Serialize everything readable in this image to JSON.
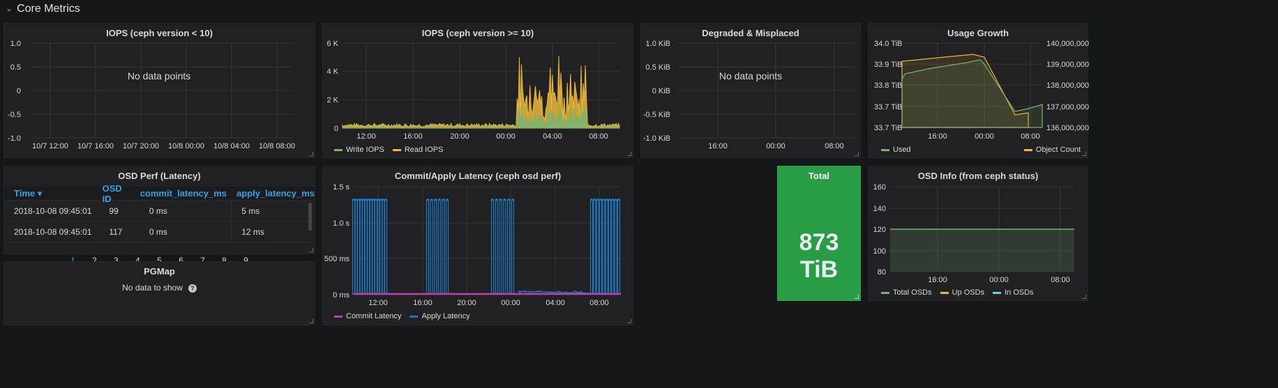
{
  "row": {
    "title": "Core Metrics"
  },
  "panels": {
    "iops_old": {
      "title": "IOPS (ceph version < 10)",
      "nodata": "No data points",
      "yticks": [
        "1.0",
        "0.5",
        "0",
        "-0.5",
        "-1.0"
      ],
      "xticks": [
        "10/7 12:00",
        "10/7 16:00",
        "10/7 20:00",
        "10/8 00:00",
        "10/8 04:00",
        "10/8 08:00"
      ]
    },
    "iops_new": {
      "title": "IOPS (ceph version >= 10)",
      "yticks": [
        "6 K",
        "4 K",
        "2 K",
        "0"
      ],
      "xticks": [
        "12:00",
        "16:00",
        "20:00",
        "00:00",
        "04:00",
        "08:00"
      ],
      "legend": [
        "Write IOPS",
        "Read IOPS"
      ]
    },
    "degraded": {
      "title": "Degraded & Misplaced",
      "nodata": "No data points",
      "yticks": [
        "1.0 KiB",
        "0.5 KiB",
        "0 KiB",
        "-0.5 KiB",
        "-1.0 KiB"
      ],
      "xticks": [
        "16:00",
        "00:00",
        "08:00"
      ]
    },
    "usage": {
      "title": "Usage Growth",
      "yticks_left": [
        "34.0 TiB",
        "33.9 TiB",
        "33.8 TiB",
        "33.7 TiB",
        "33.7 TiB"
      ],
      "yticks_right": [
        "140,000,000",
        "139,000,000",
        "138,000,000",
        "137,000,000",
        "136,000,000"
      ],
      "xticks": [
        "16:00",
        "00:00",
        "08:00"
      ],
      "legend_left": "Used",
      "legend_right": "Object Count"
    },
    "osd_perf": {
      "title": "OSD Perf (Latency)",
      "columns": [
        "Time",
        "OSD ID",
        "commit_latency_ms",
        "apply_latency_ms"
      ],
      "sort_indicator": "▾",
      "rows": [
        [
          "2018-10-08 09:45:01",
          "99",
          "0 ms",
          "5 ms"
        ],
        [
          "2018-10-08 09:45:01",
          "117",
          "0 ms",
          "12 ms"
        ]
      ],
      "pages": [
        "1",
        "2",
        "3",
        "4",
        "5",
        "6",
        "7",
        "8",
        "9"
      ]
    },
    "pgmap": {
      "title": "PGMap",
      "nodata": "No data to show",
      "help": "?"
    },
    "latency": {
      "title": "Commit/Apply Latency (ceph osd perf)",
      "yticks": [
        "1.5 s",
        "1.0 s",
        "500 ms",
        "0 ms"
      ],
      "xticks": [
        "12:00",
        "16:00",
        "20:00",
        "00:00",
        "04:00",
        "08:00"
      ],
      "legend": [
        "Commit Latency",
        "Apply Latency"
      ]
    },
    "total": {
      "title": "Total",
      "value": "873 TiB"
    },
    "osd_info": {
      "title": "OSD Info (from ceph status)",
      "yticks": [
        "160",
        "140",
        "120",
        "100",
        "80"
      ],
      "xticks": [
        "16:00",
        "00:00",
        "08:00"
      ],
      "legend": [
        "Total OSDs",
        "Up OSDs",
        "In OSDs"
      ]
    }
  },
  "colors": {
    "green": "#7eb26d",
    "yellow": "#eab839",
    "blue": "#1f78c1",
    "magenta": "#ba43a9",
    "light_blue": "#6ed0e0",
    "stat_bg": "#299c46",
    "link": "#33a2e5"
  }
}
